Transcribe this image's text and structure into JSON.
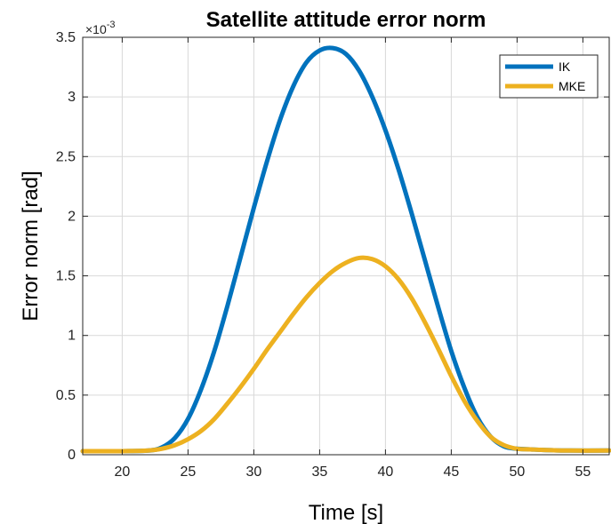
{
  "chart_data": {
    "type": "line",
    "title": "Satellite attitude error norm",
    "xlabel": "Time [s]",
    "ylabel": "Error norm [rad]",
    "y_multiplier_label": "×10",
    "y_multiplier_exponent": "-3",
    "xlim": [
      17,
      57
    ],
    "ylim": [
      0,
      3.5
    ],
    "xticks": [
      20,
      25,
      30,
      35,
      40,
      45,
      50,
      55
    ],
    "yticks": [
      0,
      0.5,
      1,
      1.5,
      2,
      2.5,
      3,
      3.5
    ],
    "ytick_labels": [
      "0",
      "0.5",
      "1",
      "1.5",
      "2",
      "2.5",
      "3",
      "3.5"
    ],
    "grid": true,
    "legend_position": "top-right",
    "series": [
      {
        "name": "IK",
        "color": "#0072BD",
        "x": [
          17,
          20,
          22,
          23,
          24,
          25,
          26,
          27,
          28,
          29,
          30,
          31,
          32,
          33,
          34,
          35,
          36,
          37,
          38,
          39,
          40,
          41,
          42,
          43,
          44,
          45,
          46,
          47,
          48,
          49,
          50,
          51,
          52,
          54,
          57
        ],
        "y": [
          0.03,
          0.03,
          0.035,
          0.06,
          0.14,
          0.3,
          0.55,
          0.87,
          1.25,
          1.66,
          2.07,
          2.46,
          2.81,
          3.09,
          3.29,
          3.39,
          3.41,
          3.36,
          3.22,
          3.0,
          2.72,
          2.39,
          2.02,
          1.63,
          1.24,
          0.87,
          0.56,
          0.31,
          0.15,
          0.07,
          0.05,
          0.045,
          0.04,
          0.035,
          0.035
        ]
      },
      {
        "name": "MKE",
        "color": "#EDB120",
        "x": [
          17,
          20,
          22,
          23,
          24,
          25,
          26,
          27,
          28,
          29,
          30,
          31,
          32,
          33,
          34,
          35,
          36,
          37,
          38,
          39,
          40,
          41,
          42,
          43,
          44,
          45,
          46,
          47,
          48,
          49,
          50,
          51,
          52,
          54,
          57
        ],
        "y": [
          0.03,
          0.03,
          0.035,
          0.05,
          0.08,
          0.13,
          0.2,
          0.3,
          0.43,
          0.57,
          0.72,
          0.88,
          1.03,
          1.18,
          1.32,
          1.44,
          1.54,
          1.61,
          1.65,
          1.64,
          1.58,
          1.47,
          1.31,
          1.11,
          0.89,
          0.66,
          0.45,
          0.28,
          0.15,
          0.08,
          0.05,
          0.045,
          0.04,
          0.035,
          0.035
        ]
      }
    ]
  }
}
